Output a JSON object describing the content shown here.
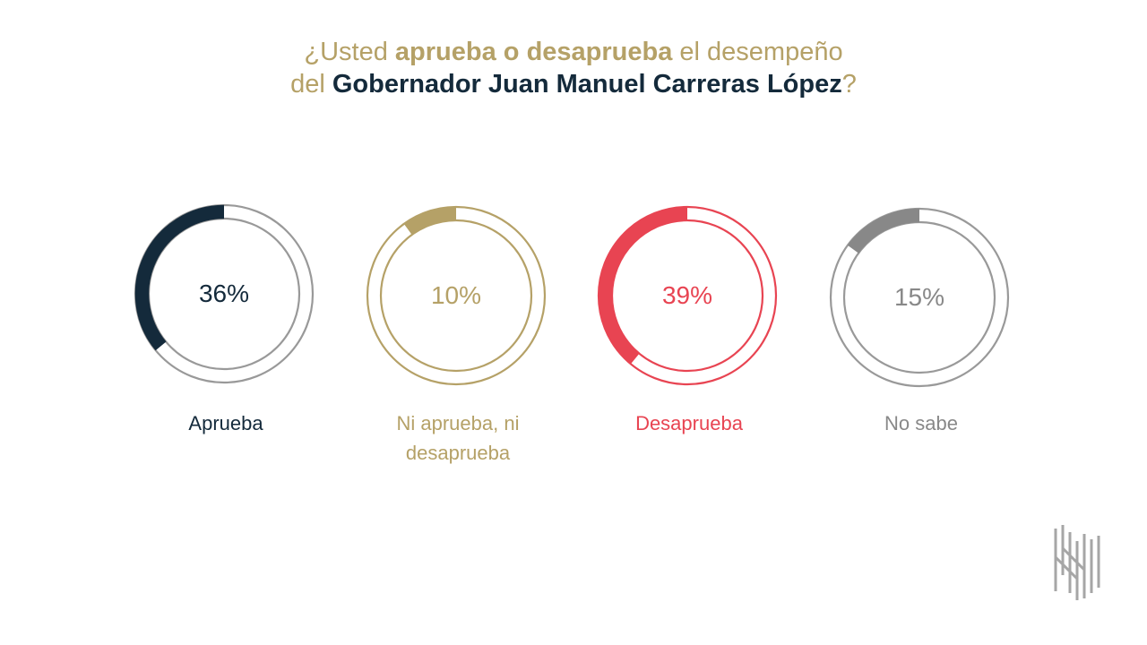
{
  "title": {
    "line1_a": "¿Usted ",
    "line1_b": "aprueba o desaprueba",
    "line1_c": " el desempeño",
    "line2_a": "del ",
    "line2_b": "Gobernador  Juan Manuel Carreras López",
    "line2_c": "?"
  },
  "chart_data": {
    "type": "pie",
    "title": "¿Usted aprueba o desaprueba el desempeño del Gobernador  Juan Manuel Carreras López?",
    "unit": "%",
    "categories": [
      "Aprueba",
      "Ni aprueba, ni desaprueba",
      "Desaprueba",
      "No sabe"
    ],
    "values": [
      36,
      10,
      39,
      15
    ],
    "value_labels": [
      "36%",
      "10%",
      "39%",
      "15%"
    ],
    "label_lines": [
      [
        "Aprueba"
      ],
      [
        "Ni aprueba, ni",
        "desaprueba"
      ],
      [
        "Desaprueba"
      ],
      [
        "No sabe"
      ]
    ],
    "colors": [
      "#142a3b",
      "#b5a167",
      "#e84452",
      "#888888"
    ],
    "ring_colors": [
      "#999999",
      "#b5a167",
      "#e84452",
      "#999999"
    ],
    "text_colors": [
      "#142a3b",
      "#b5a167",
      "#e84452",
      "#888888"
    ]
  }
}
